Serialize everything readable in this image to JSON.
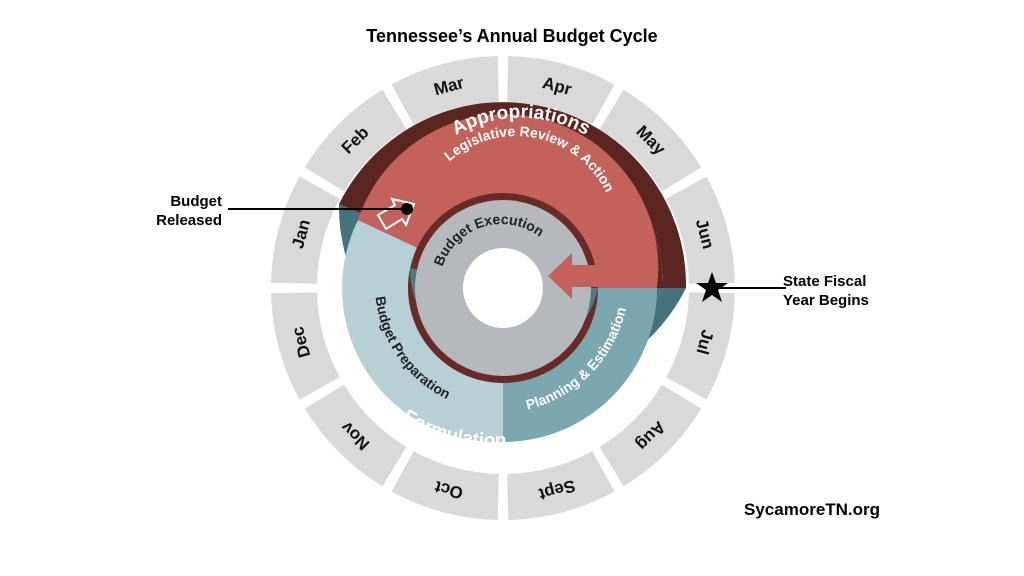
{
  "title": "Tennessee’s Annual Budget Cycle",
  "months": [
    "Jul",
    "Aug",
    "Sept",
    "Oct",
    "Nov",
    "Dec",
    "Jan",
    "Feb",
    "Mar",
    "Apr",
    "May",
    "Jun"
  ],
  "outer_ring": {
    "appropriations": "Appropriations",
    "formulation": "Formulation"
  },
  "inner_ring": {
    "legislative": "Legislative Review & Action",
    "preparation": "Budget Preparation",
    "planning": "Planning & Estimation"
  },
  "center": {
    "execution": "Budget Execution"
  },
  "annotations": {
    "budget_released": [
      "Budget",
      "Released"
    ],
    "fiscal_year": [
      "State Fiscal",
      "Year Begins"
    ]
  },
  "source": "SycamoreTN.org",
  "colors": {
    "appropriations": "#5b2520",
    "legislative": "#c2625a",
    "formulation": "#46727b",
    "preparation": "#b6d0d6",
    "planning": "#7aa7b0",
    "execution": "#b5b8bd",
    "month_ring": "#d9d9d9"
  }
}
